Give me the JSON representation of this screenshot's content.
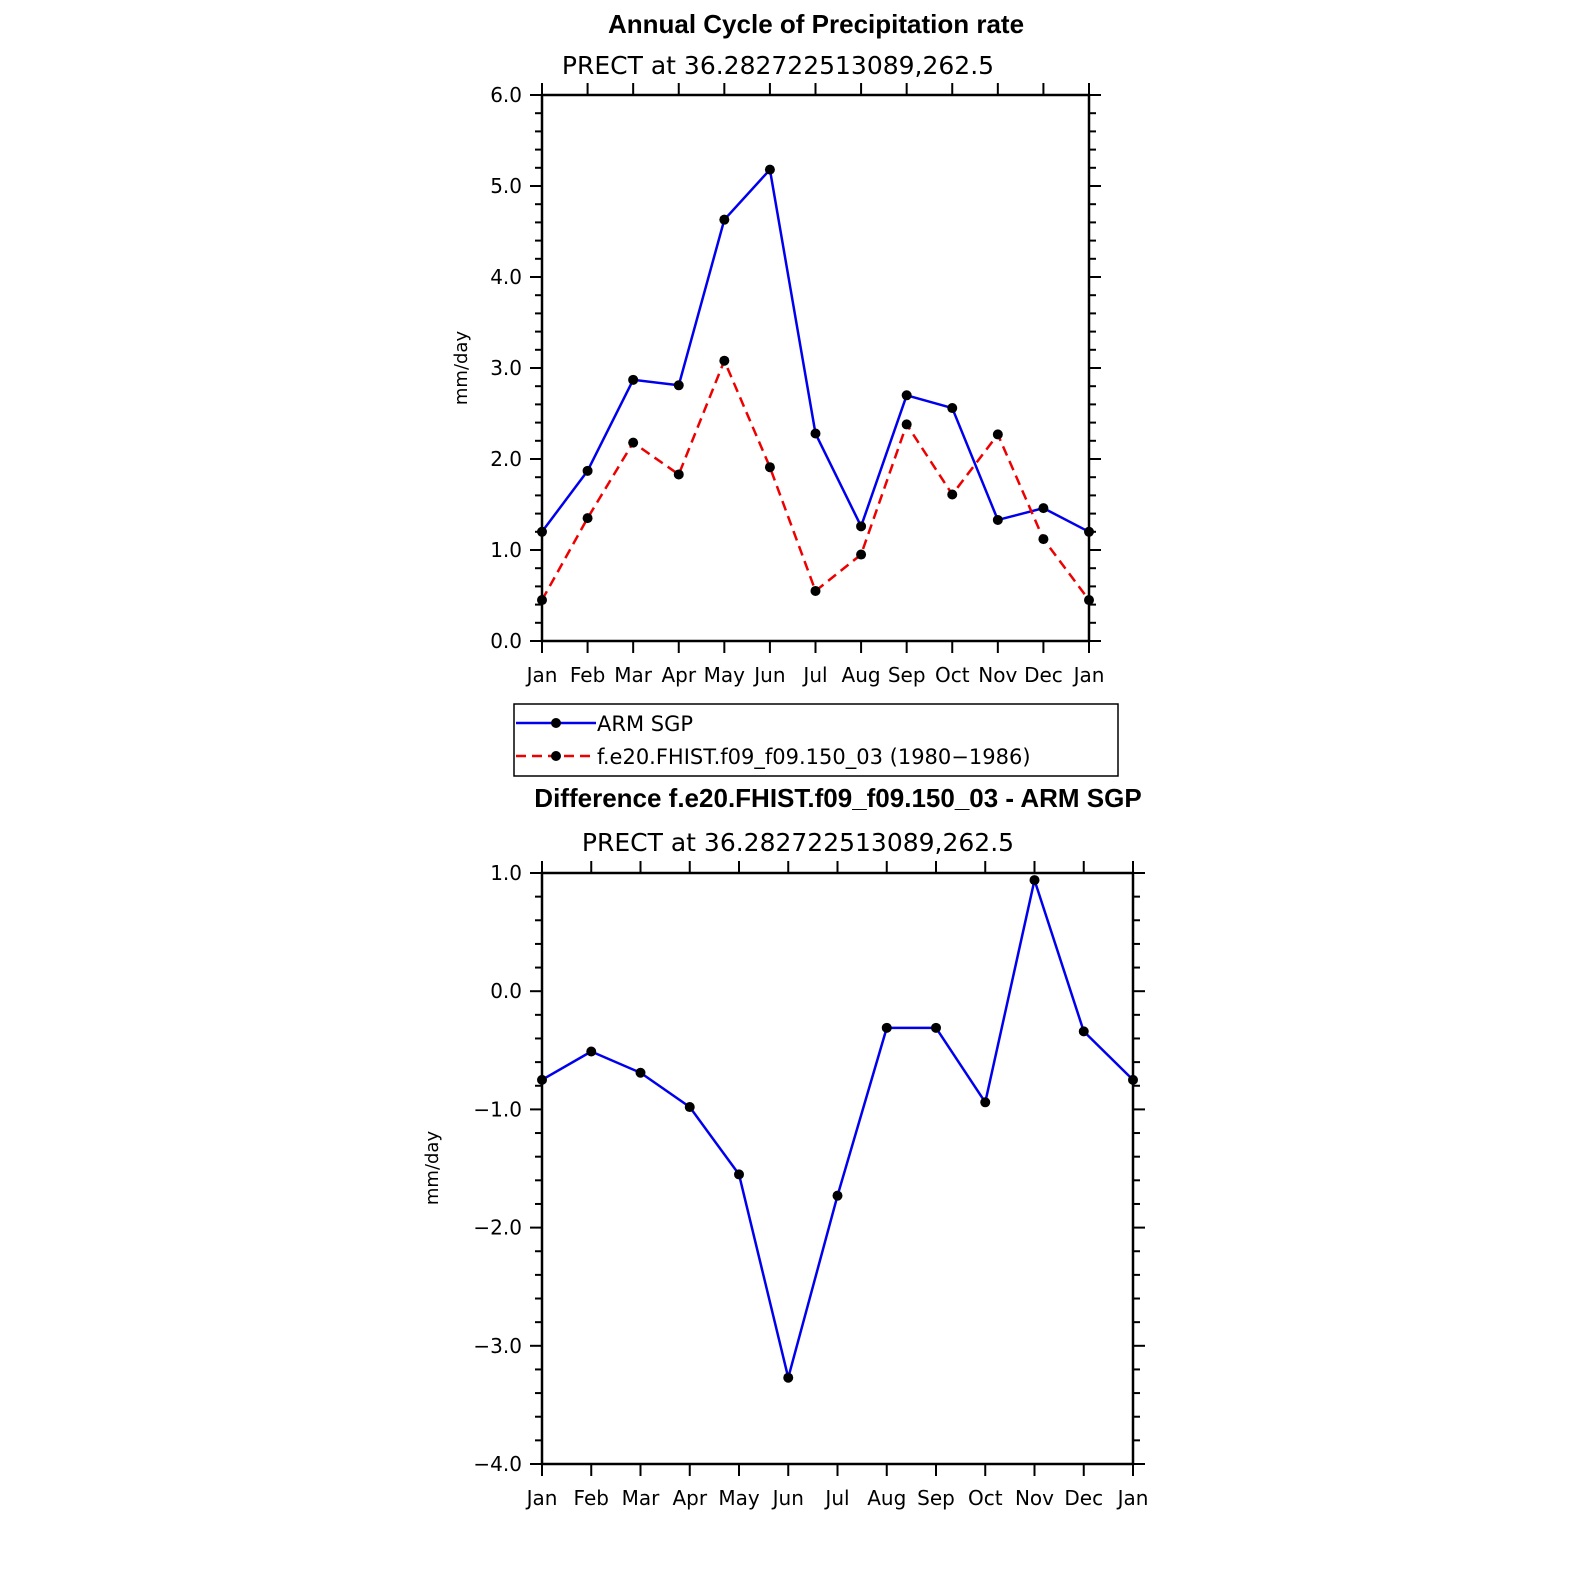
{
  "chart_data": [
    {
      "type": "line",
      "title": "Annual Cycle of Precipitation rate",
      "subtitle": "PRECT at 36.282722513089,262.5",
      "ylabel": "mm/day",
      "xlabel": "",
      "categories": [
        "Jan",
        "Feb",
        "Mar",
        "Apr",
        "May",
        "Jun",
        "Jul",
        "Aug",
        "Sep",
        "Oct",
        "Nov",
        "Dec",
        "Jan"
      ],
      "ylim": [
        0,
        6
      ],
      "yticks": [
        "0.0",
        "1.0",
        "2.0",
        "3.0",
        "4.0",
        "5.0",
        "6.0"
      ],
      "series": [
        {
          "name": "ARM SGP",
          "color": "#0000ee",
          "dash": "solid",
          "values": [
            1.2,
            1.87,
            2.87,
            2.81,
            4.63,
            5.18,
            2.28,
            1.26,
            2.7,
            2.56,
            1.33,
            1.46,
            1.2
          ]
        },
        {
          "name": "f.e20.FHIST.f09_f09.150_03 (1980−1986)",
          "color": "#ee0000",
          "dash": "dashed",
          "values": [
            0.45,
            1.35,
            2.18,
            1.83,
            3.08,
            1.91,
            0.55,
            0.95,
            2.38,
            1.61,
            2.27,
            1.12,
            0.45
          ]
        }
      ],
      "legend": "below"
    },
    {
      "type": "line",
      "title": "Difference f.e20.FHIST.f09_f09.150_03 - ARM SGP",
      "subtitle": "PRECT  at  36.282722513089,262.5",
      "ylabel": "mm/day",
      "xlabel": "",
      "categories": [
        "Jan",
        "Feb",
        "Mar",
        "Apr",
        "May",
        "Jun",
        "Jul",
        "Aug",
        "Sep",
        "Oct",
        "Nov",
        "Dec",
        "Jan"
      ],
      "ylim": [
        -4,
        1
      ],
      "yticks": [
        "−4.0",
        "−3.0",
        "−2.0",
        "−1.0",
        "0.0",
        "1.0"
      ],
      "series": [
        {
          "color": "#0000ee",
          "dash": "solid",
          "values": [
            -0.75,
            -0.51,
            -0.69,
            -0.98,
            -1.55,
            -3.27,
            -1.73,
            -0.31,
            -0.31,
            -0.94,
            0.94,
            -0.34,
            -0.75
          ]
        }
      ]
    }
  ]
}
